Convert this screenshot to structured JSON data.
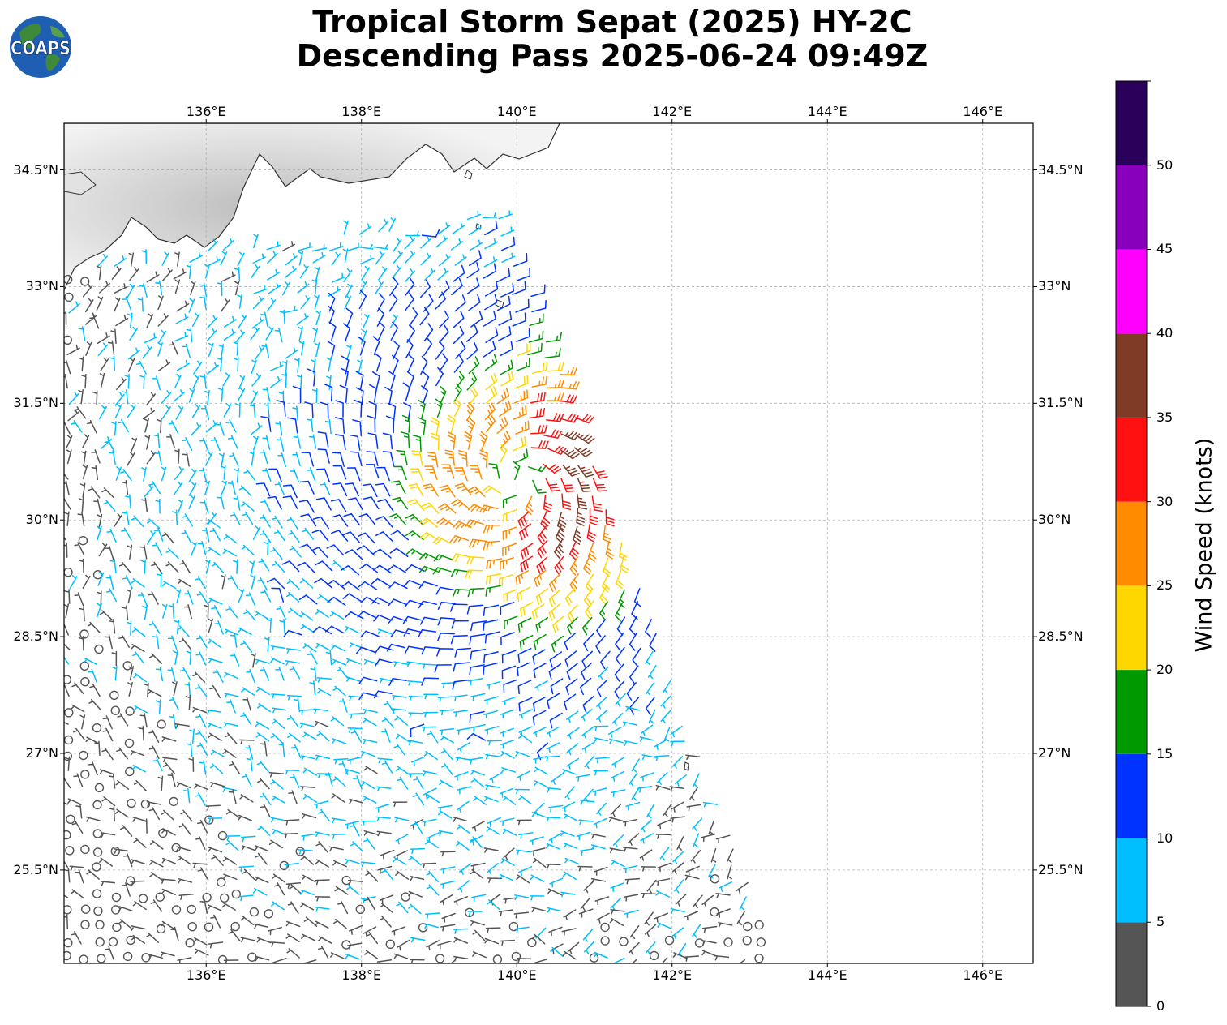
{
  "title": {
    "line1": "Tropical Storm Sepat (2025) HY-2C",
    "line2": "Descending Pass 2025-06-24 09:49Z"
  },
  "logo": {
    "text": "COAPS",
    "icon": "globe-logo-icon"
  },
  "map": {
    "lon_range": [
      134.17,
      146.65
    ],
    "lat_range": [
      24.3,
      35.1
    ],
    "lon_ticks": [
      "136°E",
      "138°E",
      "140°E",
      "142°E",
      "144°E",
      "146°E"
    ],
    "lat_ticks": [
      "34.5°N",
      "33°N",
      "31.5°N",
      "30°N",
      "28.5°N",
      "27°N",
      "25.5°N"
    ],
    "gridlines": true,
    "storm_center": {
      "lon": 140.0,
      "lat": 30.5
    }
  },
  "colorbar": {
    "label": "Wind Speed (knots)",
    "ticks": [
      "0",
      "5",
      "10",
      "15",
      "20",
      "25",
      "30",
      "35",
      "40",
      "45",
      "50"
    ],
    "bins": [
      {
        "min": 0,
        "max": 5,
        "color": "#555555"
      },
      {
        "min": 5,
        "max": 10,
        "color": "#00bfff"
      },
      {
        "min": 10,
        "max": 15,
        "color": "#0033ff"
      },
      {
        "min": 15,
        "max": 20,
        "color": "#009900"
      },
      {
        "min": 20,
        "max": 25,
        "color": "#ffd700"
      },
      {
        "min": 25,
        "max": 30,
        "color": "#ff8c00"
      },
      {
        "min": 30,
        "max": 35,
        "color": "#ff1111"
      },
      {
        "min": 35,
        "max": 40,
        "color": "#7f3b26"
      },
      {
        "min": 40,
        "max": 45,
        "color": "#ff00ff"
      },
      {
        "min": 45,
        "max": 50,
        "color": "#8800bb"
      },
      {
        "min": 50,
        "max": 55,
        "color": "#2a005a"
      }
    ]
  }
}
